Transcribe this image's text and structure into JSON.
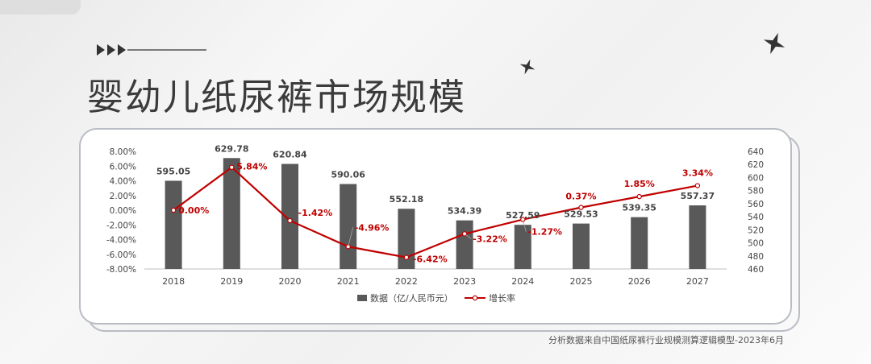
{
  "page": {
    "title": "婴幼儿纸尿裤市场规模",
    "source": "分析数据来自中国纸尿裤行业规模测算逻辑模型-2023年6月"
  },
  "decor": {
    "icons": [
      "triple-arrow-icon",
      "sparkle-star-icon"
    ]
  },
  "colors": {
    "bar": "#595959",
    "line": "#C00000",
    "title": "#3b3b3b"
  },
  "chart_data": {
    "type": "bar",
    "categories": [
      "2018",
      "2019",
      "2020",
      "2021",
      "2022",
      "2023",
      "2024",
      "2025",
      "2026",
      "2027"
    ],
    "series": [
      {
        "name": "数据（亿/人民币元）",
        "type": "bar",
        "axis": "right",
        "values": [
          595.05,
          629.78,
          620.84,
          590.06,
          552.18,
          534.39,
          527.59,
          529.53,
          539.35,
          557.37
        ],
        "labels": [
          "595.05",
          "629.78",
          "620.84",
          "590.06",
          "552.18",
          "534.39",
          "527.59",
          "529.53",
          "539.35",
          "557.37"
        ]
      },
      {
        "name": "增长率",
        "type": "line",
        "axis": "left",
        "values": [
          0.0,
          5.84,
          -1.42,
          -4.96,
          -6.42,
          -3.22,
          -1.27,
          0.37,
          1.85,
          3.34
        ],
        "labels": [
          "0.00%",
          "5.84%",
          "-1.42%",
          "-4.96%",
          "-6.42%",
          "-3.22%",
          "-1.27%",
          "0.37%",
          "1.85%",
          "3.34%"
        ]
      }
    ],
    "y_left": {
      "ticks": [
        "8.00%",
        "6.00%",
        "4.00%",
        "2.00%",
        "0.00%",
        "-2.00%",
        "-4.00%",
        "-6.00%",
        "-8.00%"
      ],
      "range": [
        -8,
        8
      ]
    },
    "y_right": {
      "ticks": [
        "640",
        "620",
        "600",
        "580",
        "560",
        "540",
        "520",
        "500",
        "480",
        "460"
      ],
      "range": [
        460,
        640
      ]
    },
    "legend": {
      "position": "bottom"
    },
    "grid": false
  }
}
